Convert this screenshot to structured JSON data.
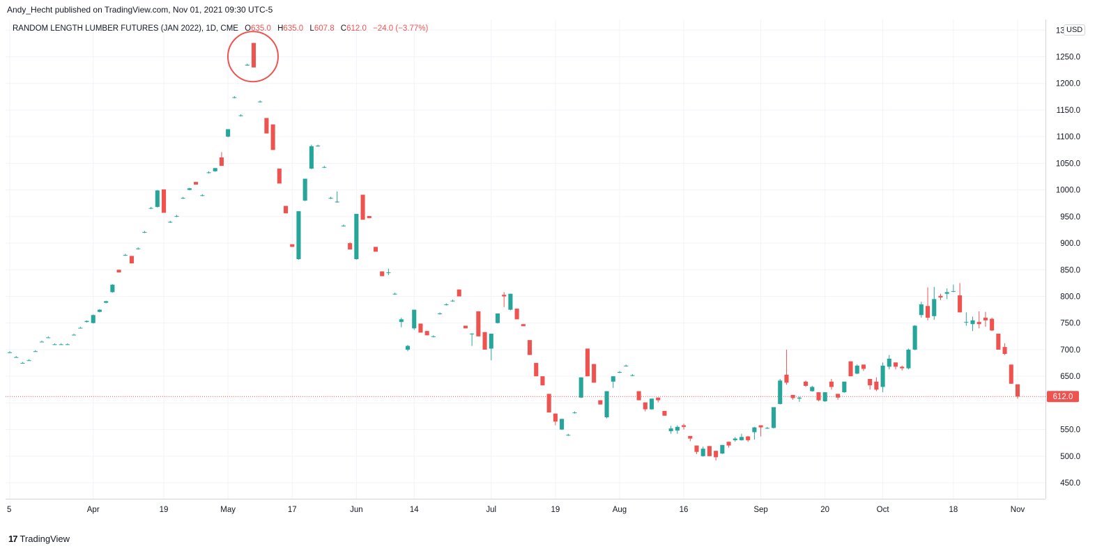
{
  "header": {
    "caption": "Andy_Hecht published on TradingView.com, Nov 01, 2021 09:30 UTC-5",
    "symbol": "RANDOM LENGTH LUMBER FUTURES (JAN 2022), 1D, CME",
    "o_label": "O",
    "o_value": "635.0",
    "h_label": "H",
    "h_value": "635.0",
    "l_label": "L",
    "l_value": "607.8",
    "c_label": "C",
    "c_value": "612.0",
    "change": "−24.0 (−3.77%)",
    "currency": "USD"
  },
  "footer": {
    "logo": "17",
    "brand": "TradingView"
  },
  "colors": {
    "up": "#26a69a",
    "down": "#ef5350",
    "grid": "#f0f3fa",
    "axis": "#131722"
  },
  "chart_data": {
    "type": "candlestick",
    "ylim": [
      420,
      1320
    ],
    "y_ticks": [
      450,
      500,
      550,
      600,
      650,
      700,
      750,
      800,
      850,
      900,
      950,
      1000,
      1050,
      1100,
      1150,
      1200,
      1250,
      1300
    ],
    "y_tick_labels": [
      "450.0",
      "500.0",
      "550.0",
      "",
      "650.0",
      "700.0",
      "750.0",
      "800.0",
      "850.0",
      "900.0",
      "950.0",
      "1000.0",
      "1050.0",
      "1100.0",
      "1150.0",
      "1200.0",
      "1250.0",
      "1300.0"
    ],
    "x_labels": [
      "5",
      "Apr",
      "19",
      "May",
      "17",
      "Jun",
      "14",
      "Jul",
      "19",
      "Aug",
      "16",
      "Sep",
      "20",
      "Oct",
      "18",
      "Nov"
    ],
    "x_label_bars": [
      0,
      13,
      24,
      34,
      44,
      54,
      63,
      75,
      85,
      95,
      105,
      117,
      127,
      136,
      147,
      157
    ],
    "last_price": 612.0,
    "last_price_label": "612.0",
    "annotation": {
      "type": "circle",
      "bar_index": 38,
      "note": ""
    },
    "candles": [
      {
        "o": 695,
        "h": 697,
        "l": 694,
        "c": 695
      },
      {
        "o": 686,
        "h": 688,
        "l": 685,
        "c": 686
      },
      {
        "o": 675,
        "h": 677,
        "l": 674,
        "c": 675
      },
      {
        "o": 680,
        "h": 682,
        "l": 679,
        "c": 680
      },
      {
        "o": 697,
        "h": 699,
        "l": 696,
        "c": 697
      },
      {
        "o": 715,
        "h": 717,
        "l": 714,
        "c": 715
      },
      {
        "o": 723,
        "h": 725,
        "l": 722,
        "c": 723
      },
      {
        "o": 710,
        "h": 712,
        "l": 709,
        "c": 710
      },
      {
        "o": 710,
        "h": 712,
        "l": 709,
        "c": 710
      },
      {
        "o": 710,
        "h": 712,
        "l": 709,
        "c": 710
      },
      {
        "o": 728,
        "h": 730,
        "l": 727,
        "c": 728
      },
      {
        "o": 741,
        "h": 743,
        "l": 740,
        "c": 741
      },
      {
        "o": 752,
        "h": 755,
        "l": 751,
        "c": 754
      },
      {
        "o": 750,
        "h": 766,
        "l": 749,
        "c": 765
      },
      {
        "o": 771,
        "h": 776,
        "l": 770,
        "c": 775
      },
      {
        "o": 788,
        "h": 792,
        "l": 787,
        "c": 791
      },
      {
        "o": 808,
        "h": 823,
        "l": 807,
        "c": 822
      },
      {
        "o": 850,
        "h": 850,
        "l": 845,
        "c": 845
      },
      {
        "o": 878,
        "h": 880,
        "l": 876,
        "c": 878
      },
      {
        "o": 876,
        "h": 876,
        "l": 862,
        "c": 862
      },
      {
        "o": 890,
        "h": 892,
        "l": 888,
        "c": 890
      },
      {
        "o": 921,
        "h": 923,
        "l": 919,
        "c": 921
      },
      {
        "o": 966,
        "h": 968,
        "l": 964,
        "c": 966
      },
      {
        "o": 968,
        "h": 1000,
        "l": 967,
        "c": 999
      },
      {
        "o": 1001,
        "h": 1001,
        "l": 957,
        "c": 957
      },
      {
        "o": 940,
        "h": 942,
        "l": 938,
        "c": 940
      },
      {
        "o": 951,
        "h": 953,
        "l": 949,
        "c": 951
      },
      {
        "o": 985,
        "h": 987,
        "l": 983,
        "c": 985
      },
      {
        "o": 1000,
        "h": 1004,
        "l": 999,
        "c": 1003
      },
      {
        "o": 1015,
        "h": 1015,
        "l": 1010,
        "c": 1010
      },
      {
        "o": 990,
        "h": 992,
        "l": 988,
        "c": 990
      },
      {
        "o": 1033,
        "h": 1035,
        "l": 1031,
        "c": 1033
      },
      {
        "o": 1035,
        "h": 1041,
        "l": 1034,
        "c": 1041
      },
      {
        "o": 1061,
        "h": 1071,
        "l": 1045,
        "c": 1045
      },
      {
        "o": 1100,
        "h": 1114,
        "l": 1099,
        "c": 1114
      },
      {
        "o": 1174,
        "h": 1176,
        "l": 1172,
        "c": 1174
      },
      {
        "o": 1140,
        "h": 1142,
        "l": 1138,
        "c": 1140
      },
      {
        "o": 1235,
        "h": 1237,
        "l": 1233,
        "c": 1235
      },
      {
        "o": 1276,
        "h": 1276,
        "l": 1230,
        "c": 1230
      },
      {
        "o": 1166,
        "h": 1168,
        "l": 1164,
        "c": 1166
      },
      {
        "o": 1135,
        "h": 1135,
        "l": 1106,
        "c": 1106
      },
      {
        "o": 1123,
        "h": 1123,
        "l": 1075,
        "c": 1075
      },
      {
        "o": 1040,
        "h": 1040,
        "l": 1012,
        "c": 1012
      },
      {
        "o": 970,
        "h": 970,
        "l": 956,
        "c": 956
      },
      {
        "o": 898,
        "h": 898,
        "l": 893,
        "c": 893
      },
      {
        "o": 870,
        "h": 960,
        "l": 869,
        "c": 960
      },
      {
        "o": 980,
        "h": 1021,
        "l": 979,
        "c": 1021
      },
      {
        "o": 1040,
        "h": 1085,
        "l": 1039,
        "c": 1082
      },
      {
        "o": 1083,
        "h": 1085,
        "l": 1081,
        "c": 1083
      },
      {
        "o": 1043,
        "h": 1045,
        "l": 1041,
        "c": 1043
      },
      {
        "o": 985,
        "h": 987,
        "l": 983,
        "c": 985
      },
      {
        "o": 978,
        "h": 997,
        "l": 976,
        "c": 978
      },
      {
        "o": 933,
        "h": 935,
        "l": 931,
        "c": 933
      },
      {
        "o": 900,
        "h": 902,
        "l": 888,
        "c": 888
      },
      {
        "o": 870,
        "h": 955,
        "l": 869,
        "c": 955
      },
      {
        "o": 991,
        "h": 991,
        "l": 944,
        "c": 944
      },
      {
        "o": 951,
        "h": 951,
        "l": 947,
        "c": 947
      },
      {
        "o": 893,
        "h": 893,
        "l": 884,
        "c": 884
      },
      {
        "o": 847,
        "h": 847,
        "l": 838,
        "c": 838
      },
      {
        "o": 845,
        "h": 852,
        "l": 840,
        "c": 845
      },
      {
        "o": 805,
        "h": 807,
        "l": 803,
        "c": 805
      },
      {
        "o": 752,
        "h": 760,
        "l": 742,
        "c": 757
      },
      {
        "o": 700,
        "h": 709,
        "l": 697,
        "c": 707
      },
      {
        "o": 740,
        "h": 775,
        "l": 737,
        "c": 775
      },
      {
        "o": 749,
        "h": 749,
        "l": 732,
        "c": 732
      },
      {
        "o": 735,
        "h": 735,
        "l": 727,
        "c": 727
      },
      {
        "o": 725,
        "h": 727,
        "l": 723,
        "c": 725
      },
      {
        "o": 768,
        "h": 770,
        "l": 766,
        "c": 768
      },
      {
        "o": 785,
        "h": 787,
        "l": 783,
        "c": 785
      },
      {
        "o": 792,
        "h": 794,
        "l": 790,
        "c": 792
      },
      {
        "o": 813,
        "h": 813,
        "l": 800,
        "c": 800
      },
      {
        "o": 745,
        "h": 745,
        "l": 740,
        "c": 740
      },
      {
        "o": 730,
        "h": 731,
        "l": 707,
        "c": 730
      },
      {
        "o": 772,
        "h": 772,
        "l": 725,
        "c": 725
      },
      {
        "o": 733,
        "h": 733,
        "l": 700,
        "c": 700
      },
      {
        "o": 702,
        "h": 730,
        "l": 680,
        "c": 730
      },
      {
        "o": 750,
        "h": 768,
        "l": 749,
        "c": 768
      },
      {
        "o": 803,
        "h": 808,
        "l": 780,
        "c": 800
      },
      {
        "o": 775,
        "h": 805,
        "l": 774,
        "c": 805
      },
      {
        "o": 777,
        "h": 777,
        "l": 757,
        "c": 757
      },
      {
        "o": 748,
        "h": 748,
        "l": 744,
        "c": 744
      },
      {
        "o": 718,
        "h": 718,
        "l": 690,
        "c": 690
      },
      {
        "o": 675,
        "h": 675,
        "l": 650,
        "c": 650
      },
      {
        "o": 650,
        "h": 650,
        "l": 633,
        "c": 633
      },
      {
        "o": 617,
        "h": 617,
        "l": 582,
        "c": 582
      },
      {
        "o": 580,
        "h": 580,
        "l": 558,
        "c": 565
      },
      {
        "o": 550,
        "h": 570,
        "l": 549,
        "c": 570
      },
      {
        "o": 540,
        "h": 542,
        "l": 538,
        "c": 540
      },
      {
        "o": 582,
        "h": 584,
        "l": 580,
        "c": 582
      },
      {
        "o": 610,
        "h": 648,
        "l": 609,
        "c": 648
      },
      {
        "o": 702,
        "h": 702,
        "l": 650,
        "c": 650
      },
      {
        "o": 673,
        "h": 673,
        "l": 638,
        "c": 638
      },
      {
        "o": 605,
        "h": 605,
        "l": 597,
        "c": 597
      },
      {
        "o": 573,
        "h": 622,
        "l": 571,
        "c": 622
      },
      {
        "o": 640,
        "h": 650,
        "l": 628,
        "c": 650
      },
      {
        "o": 658,
        "h": 660,
        "l": 656,
        "c": 658
      },
      {
        "o": 670,
        "h": 672,
        "l": 668,
        "c": 670
      },
      {
        "o": 652,
        "h": 654,
        "l": 650,
        "c": 652
      },
      {
        "o": 622,
        "h": 622,
        "l": 605,
        "c": 605
      },
      {
        "o": 601,
        "h": 601,
        "l": 584,
        "c": 588
      },
      {
        "o": 588,
        "h": 608,
        "l": 587,
        "c": 608
      },
      {
        "o": 610,
        "h": 610,
        "l": 601,
        "c": 605
      },
      {
        "o": 585,
        "h": 585,
        "l": 576,
        "c": 576
      },
      {
        "o": 547,
        "h": 557,
        "l": 542,
        "c": 552
      },
      {
        "o": 548,
        "h": 558,
        "l": 542,
        "c": 555
      },
      {
        "o": 558,
        "h": 561,
        "l": 550,
        "c": 555
      },
      {
        "o": 538,
        "h": 538,
        "l": 528,
        "c": 533
      },
      {
        "o": 520,
        "h": 520,
        "l": 504,
        "c": 508
      },
      {
        "o": 500,
        "h": 518,
        "l": 499,
        "c": 514
      },
      {
        "o": 519,
        "h": 519,
        "l": 500,
        "c": 500
      },
      {
        "o": 510,
        "h": 510,
        "l": 492,
        "c": 498
      },
      {
        "o": 505,
        "h": 521,
        "l": 504,
        "c": 521
      },
      {
        "o": 527,
        "h": 527,
        "l": 516,
        "c": 520
      },
      {
        "o": 530,
        "h": 536,
        "l": 527,
        "c": 533
      },
      {
        "o": 530,
        "h": 542,
        "l": 529,
        "c": 536
      },
      {
        "o": 537,
        "h": 538,
        "l": 527,
        "c": 530
      },
      {
        "o": 545,
        "h": 555,
        "l": 531,
        "c": 554
      },
      {
        "o": 558,
        "h": 558,
        "l": 537,
        "c": 554
      },
      {
        "o": 553,
        "h": 555,
        "l": 551,
        "c": 553
      },
      {
        "o": 553,
        "h": 592,
        "l": 552,
        "c": 592
      },
      {
        "o": 598,
        "h": 645,
        "l": 597,
        "c": 642
      },
      {
        "o": 653,
        "h": 700,
        "l": 634,
        "c": 638
      },
      {
        "o": 615,
        "h": 615,
        "l": 606,
        "c": 609
      },
      {
        "o": 608,
        "h": 612,
        "l": 602,
        "c": 610
      },
      {
        "o": 640,
        "h": 642,
        "l": 630,
        "c": 632
      },
      {
        "o": 622,
        "h": 632,
        "l": 621,
        "c": 630
      },
      {
        "o": 620,
        "h": 620,
        "l": 603,
        "c": 605
      },
      {
        "o": 603,
        "h": 620,
        "l": 602,
        "c": 620
      },
      {
        "o": 640,
        "h": 645,
        "l": 625,
        "c": 630
      },
      {
        "o": 617,
        "h": 617,
        "l": 606,
        "c": 610
      },
      {
        "o": 620,
        "h": 640,
        "l": 619,
        "c": 640
      },
      {
        "o": 678,
        "h": 678,
        "l": 650,
        "c": 650
      },
      {
        "o": 655,
        "h": 672,
        "l": 654,
        "c": 670
      },
      {
        "o": 672,
        "h": 672,
        "l": 660,
        "c": 664
      },
      {
        "o": 645,
        "h": 645,
        "l": 625,
        "c": 633
      },
      {
        "o": 640,
        "h": 648,
        "l": 622,
        "c": 625
      },
      {
        "o": 630,
        "h": 676,
        "l": 620,
        "c": 670
      },
      {
        "o": 668,
        "h": 690,
        "l": 663,
        "c": 683
      },
      {
        "o": 676,
        "h": 676,
        "l": 663,
        "c": 668
      },
      {
        "o": 668,
        "h": 670,
        "l": 661,
        "c": 665
      },
      {
        "o": 665,
        "h": 702,
        "l": 663,
        "c": 700
      },
      {
        "o": 700,
        "h": 746,
        "l": 699,
        "c": 745
      },
      {
        "o": 765,
        "h": 790,
        "l": 760,
        "c": 785
      },
      {
        "o": 782,
        "h": 817,
        "l": 755,
        "c": 760
      },
      {
        "o": 763,
        "h": 818,
        "l": 756,
        "c": 795
      },
      {
        "o": 801,
        "h": 805,
        "l": 793,
        "c": 798
      },
      {
        "o": 805,
        "h": 815,
        "l": 795,
        "c": 808
      },
      {
        "o": 810,
        "h": 822,
        "l": 808,
        "c": 810
      },
      {
        "o": 802,
        "h": 825,
        "l": 770,
        "c": 770
      },
      {
        "o": 752,
        "h": 770,
        "l": 745,
        "c": 752
      },
      {
        "o": 748,
        "h": 762,
        "l": 735,
        "c": 755
      },
      {
        "o": 752,
        "h": 772,
        "l": 740,
        "c": 748
      },
      {
        "o": 760,
        "h": 771,
        "l": 743,
        "c": 755
      },
      {
        "o": 758,
        "h": 760,
        "l": 735,
        "c": 736
      },
      {
        "o": 730,
        "h": 730,
        "l": 700,
        "c": 700
      },
      {
        "o": 705,
        "h": 712,
        "l": 690,
        "c": 692
      },
      {
        "o": 672,
        "h": 672,
        "l": 636,
        "c": 636
      },
      {
        "o": 635,
        "h": 635,
        "l": 607.8,
        "c": 612
      }
    ]
  }
}
